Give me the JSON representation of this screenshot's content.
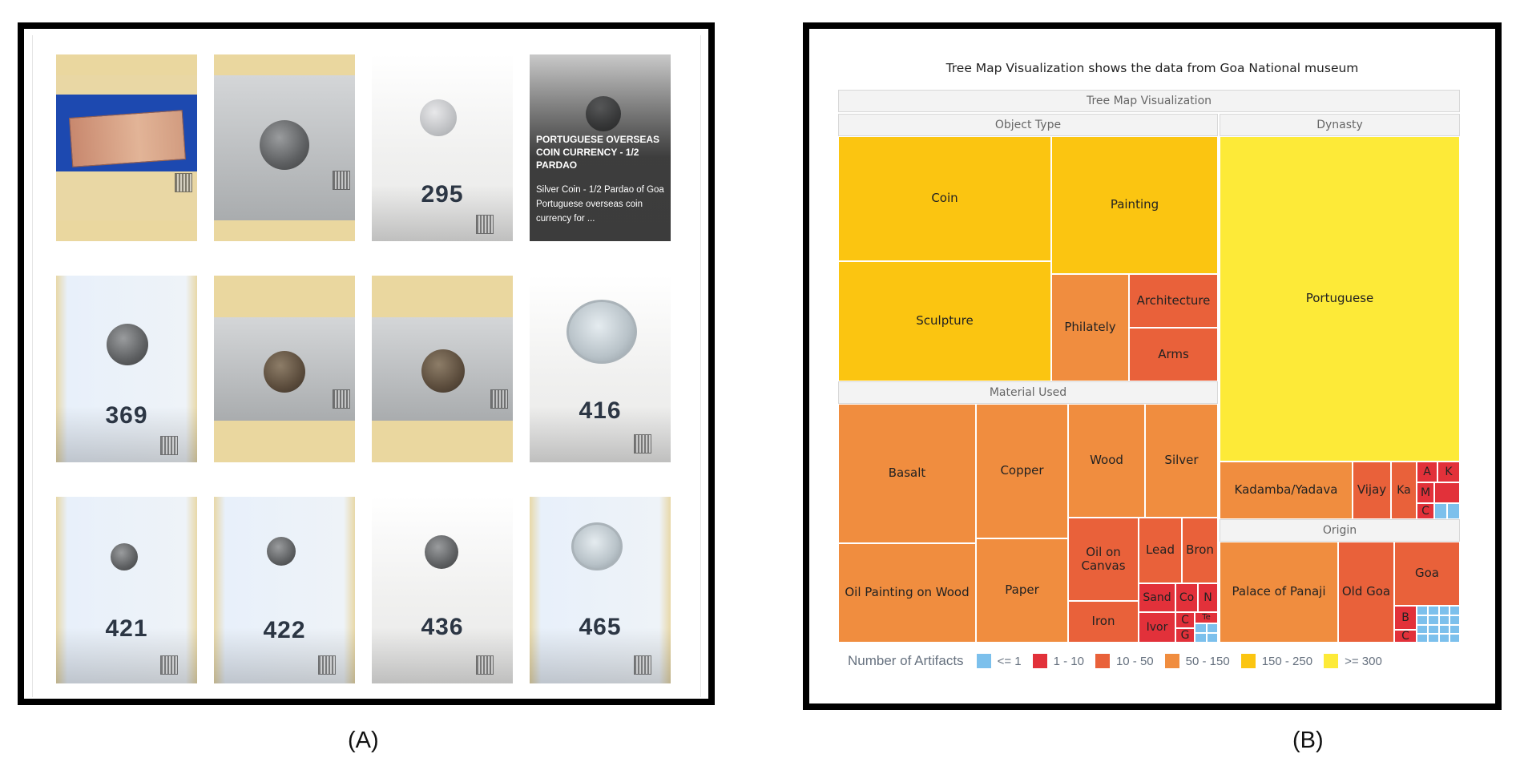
{
  "gallery": {
    "tiles": [
      {
        "number": ""
      },
      {
        "number": ""
      },
      {
        "number": "295"
      },
      {
        "number": "",
        "overlay_title": "PORTUGUESE OVERSEAS COIN CURRENCY - 1/2 PARDAO",
        "overlay_desc": "Silver Coin - 1/2 Pardao of Goa Portuguese overseas coin currency for ..."
      },
      {
        "number": "369"
      },
      {
        "number": ""
      },
      {
        "number": ""
      },
      {
        "number": "416"
      },
      {
        "number": "421"
      },
      {
        "number": "422"
      },
      {
        "number": "436"
      },
      {
        "number": "465"
      }
    ]
  },
  "treemap": {
    "heading": "Tree Map Visualization shows the data from Goa National museum",
    "root_label": "Tree Map Visualization",
    "groups": {
      "object_type": "Object Type",
      "dynasty": "Dynasty",
      "material": "Material Used",
      "origin": "Origin"
    },
    "object_type": [
      "Coin",
      "Painting",
      "Sculpture",
      "Philately",
      "Architecture",
      "Arms"
    ],
    "dynasty": [
      "Portuguese",
      "Kadamba/Yadava",
      "Vijay",
      "Ka",
      "A",
      "K",
      "M",
      "C"
    ],
    "material": [
      "Basalt",
      "Copper",
      "Wood",
      "Silver",
      "Oil Painting on Wood",
      "Paper",
      "Oil on Canvas",
      "Lead",
      "Bron",
      "Iron",
      "Sand",
      "Co",
      "N",
      "Ivor",
      "C",
      "G",
      "Te"
    ],
    "origin": [
      "Palace of Panaji",
      "Old Goa",
      "Goa",
      "B",
      "C"
    ],
    "legend": {
      "title": "Number of Artifacts",
      "items": [
        {
          "label": "<= 1",
          "color": "#7cc0ec"
        },
        {
          "label": "1 - 10",
          "color": "#e2313a"
        },
        {
          "label": "10 - 50",
          "color": "#e9613a"
        },
        {
          "label": "50 - 150",
          "color": "#f08d3f"
        },
        {
          "label": "150 - 250",
          "color": "#fbc511"
        },
        {
          "label": ">= 300",
          "color": "#fdea38"
        }
      ]
    }
  },
  "captions": {
    "a": "(A)",
    "b": "(B)"
  }
}
